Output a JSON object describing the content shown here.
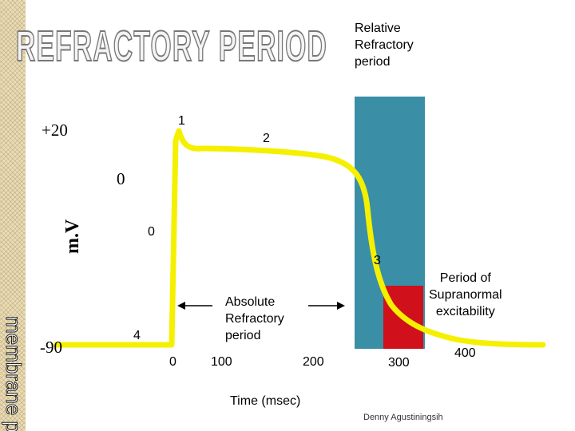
{
  "title": "REFRACTORY PERIOD",
  "sidebar_text": "membrane p",
  "colors": {
    "relative_refractory": "#3a8fa6",
    "supranormal": "#d0101a",
    "curve": "#f5f000",
    "arrow": "#000000"
  },
  "y_axis": {
    "label": "m.V",
    "tick_top": "+20",
    "tick_mid": "0",
    "tick_bottom": "-90"
  },
  "phases": {
    "p0": "0",
    "p1": "1",
    "p2": "2",
    "p3": "3",
    "p4": "4"
  },
  "x_axis": {
    "label": "Time (msec)",
    "ticks": [
      "0",
      "100",
      "200",
      "300",
      "400"
    ]
  },
  "labels": {
    "relative": [
      "Relative",
      "Refractory",
      "period"
    ],
    "absolute": [
      "Absolute",
      "Refractory",
      "period"
    ],
    "supranormal": [
      "Period of",
      "Supranormal",
      "excitability"
    ]
  },
  "author": "Denny Agustiningsih"
}
